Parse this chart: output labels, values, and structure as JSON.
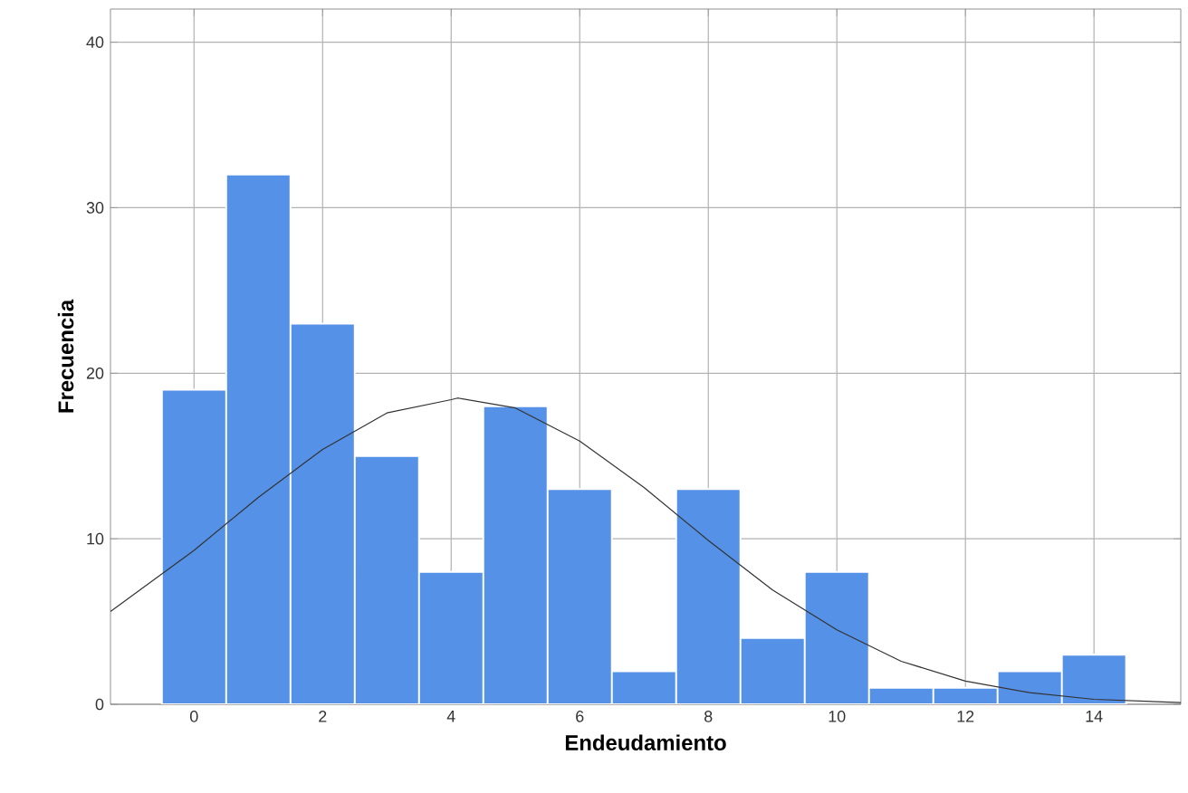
{
  "chart_data": {
    "type": "histogram",
    "xlabel": "Endeudamiento",
    "ylabel": "Frecuencia",
    "bins": [
      -0.5,
      0.5,
      1.5,
      2.5,
      3.5,
      4.5,
      5.5,
      6.5,
      7.5,
      8.5,
      9.5,
      10.5,
      11.5,
      12.5,
      13.5,
      14.5
    ],
    "values": [
      19,
      32,
      23,
      15,
      8,
      18,
      13,
      2,
      13,
      4,
      8,
      1,
      1,
      2,
      3
    ],
    "color": "#5591e6",
    "series": [
      {
        "type": "line",
        "color": "#333333",
        "x": [
          -1.3,
          0,
          1,
          2,
          3,
          4,
          4.1,
          5,
          6,
          7,
          8,
          9,
          10,
          11,
          12,
          13,
          14,
          15.35
        ],
        "values": [
          5.6,
          9.3,
          12.5,
          15.4,
          17.6,
          18.4,
          18.5,
          17.9,
          15.9,
          13.1,
          9.9,
          6.9,
          4.5,
          2.6,
          1.4,
          0.7,
          0.3,
          0.1
        ]
      }
    ],
    "xlim": [
      -1.3,
      15.35
    ],
    "ylim": [
      0,
      42
    ],
    "xticks": [
      0,
      2,
      4,
      6,
      8,
      10,
      12,
      14
    ],
    "yticks": [
      0,
      10,
      20,
      30,
      40
    ],
    "grid": true
  }
}
